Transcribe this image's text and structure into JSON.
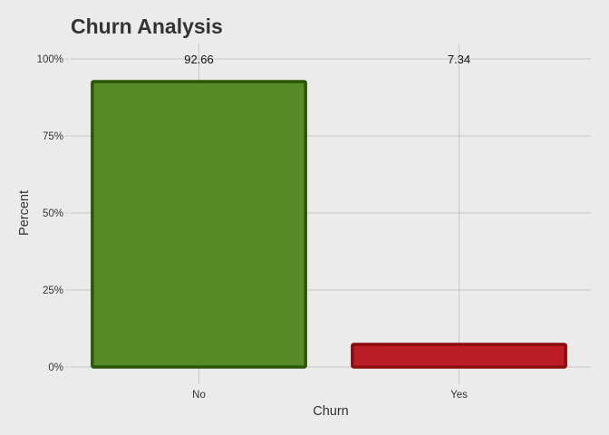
{
  "chart_data": {
    "type": "bar",
    "title": "Churn Analysis",
    "xlabel": "Churn",
    "ylabel": "Percent",
    "categories": [
      "No",
      "Yes"
    ],
    "values": [
      92.66,
      7.34
    ],
    "data_labels": [
      "92.66",
      "7.34"
    ],
    "ylim": [
      0,
      100
    ],
    "yticks": [
      0,
      25,
      50,
      75,
      100
    ],
    "ytick_labels": [
      "0%",
      "25%",
      "50%",
      "75%",
      "100%"
    ],
    "grid": true,
    "legend": "none",
    "colors": {
      "bar_fills": [
        "#588b28",
        "#bb1e27"
      ],
      "bar_outlines": [
        "#2b5607",
        "#8b0d0d"
      ],
      "background": "#ebebeb",
      "grid": "#cccccc",
      "text": "#333333"
    }
  }
}
